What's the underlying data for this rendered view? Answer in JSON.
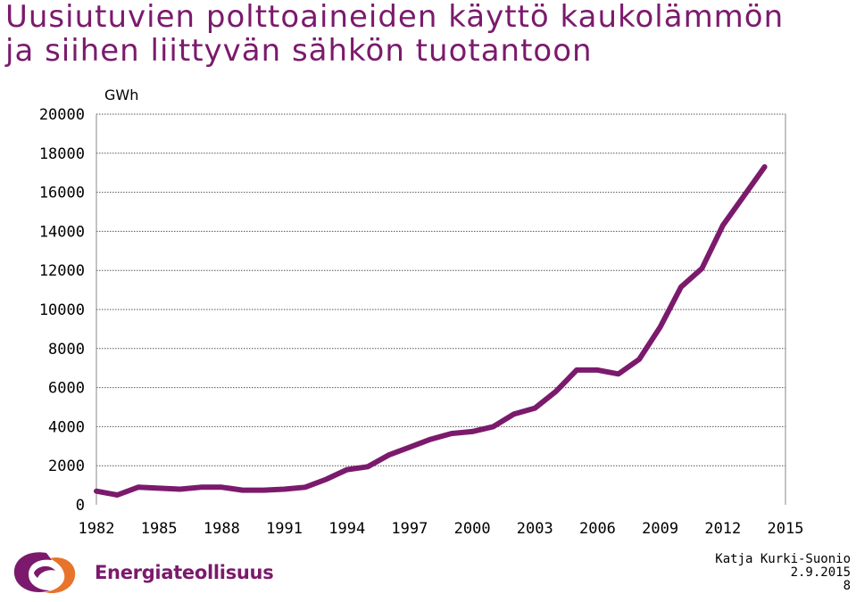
{
  "slide": {
    "title_line1": "Uusiutuvien polttoaineiden käyttö kaukolämmön",
    "title_line2": "ja siihen liittyvän sähkön tuotantoon",
    "logo_text": "Energiateollisuus",
    "author": "Katja Kurki-Suonio",
    "date": "2.9.2015",
    "page_number": "8"
  },
  "chart_data": {
    "type": "line",
    "title": "",
    "xlabel": "",
    "ylabel": "GWh",
    "xlim": [
      1982,
      2015
    ],
    "ylim": [
      0,
      20000
    ],
    "x_ticks": [
      1982,
      1985,
      1988,
      1991,
      1994,
      1997,
      2000,
      2003,
      2006,
      2009,
      2012,
      2015
    ],
    "y_ticks": [
      0,
      2000,
      4000,
      6000,
      8000,
      10000,
      12000,
      14000,
      16000,
      18000,
      20000
    ],
    "grid": true,
    "line_color": "#7b1a6c",
    "series": [
      {
        "x": [
          1982,
          1983,
          1984,
          1985,
          1986,
          1987,
          1988,
          1989,
          1990,
          1991,
          1992,
          1993,
          1994,
          1995,
          1996,
          1997,
          1998,
          1999,
          2000,
          2001,
          2002,
          2003,
          2004,
          2005,
          2006,
          2007,
          2008,
          2009,
          2010,
          2011,
          2012,
          2013,
          2014
        ],
        "values": [
          700,
          500,
          900,
          850,
          800,
          900,
          900,
          750,
          750,
          800,
          900,
          1300,
          1800,
          1950,
          2550,
          2950,
          3350,
          3650,
          3750,
          4000,
          4650,
          4950,
          5800,
          6900,
          6900,
          6700,
          7450,
          9100,
          11150,
          12100,
          14300,
          15800,
          17300
        ]
      }
    ]
  }
}
